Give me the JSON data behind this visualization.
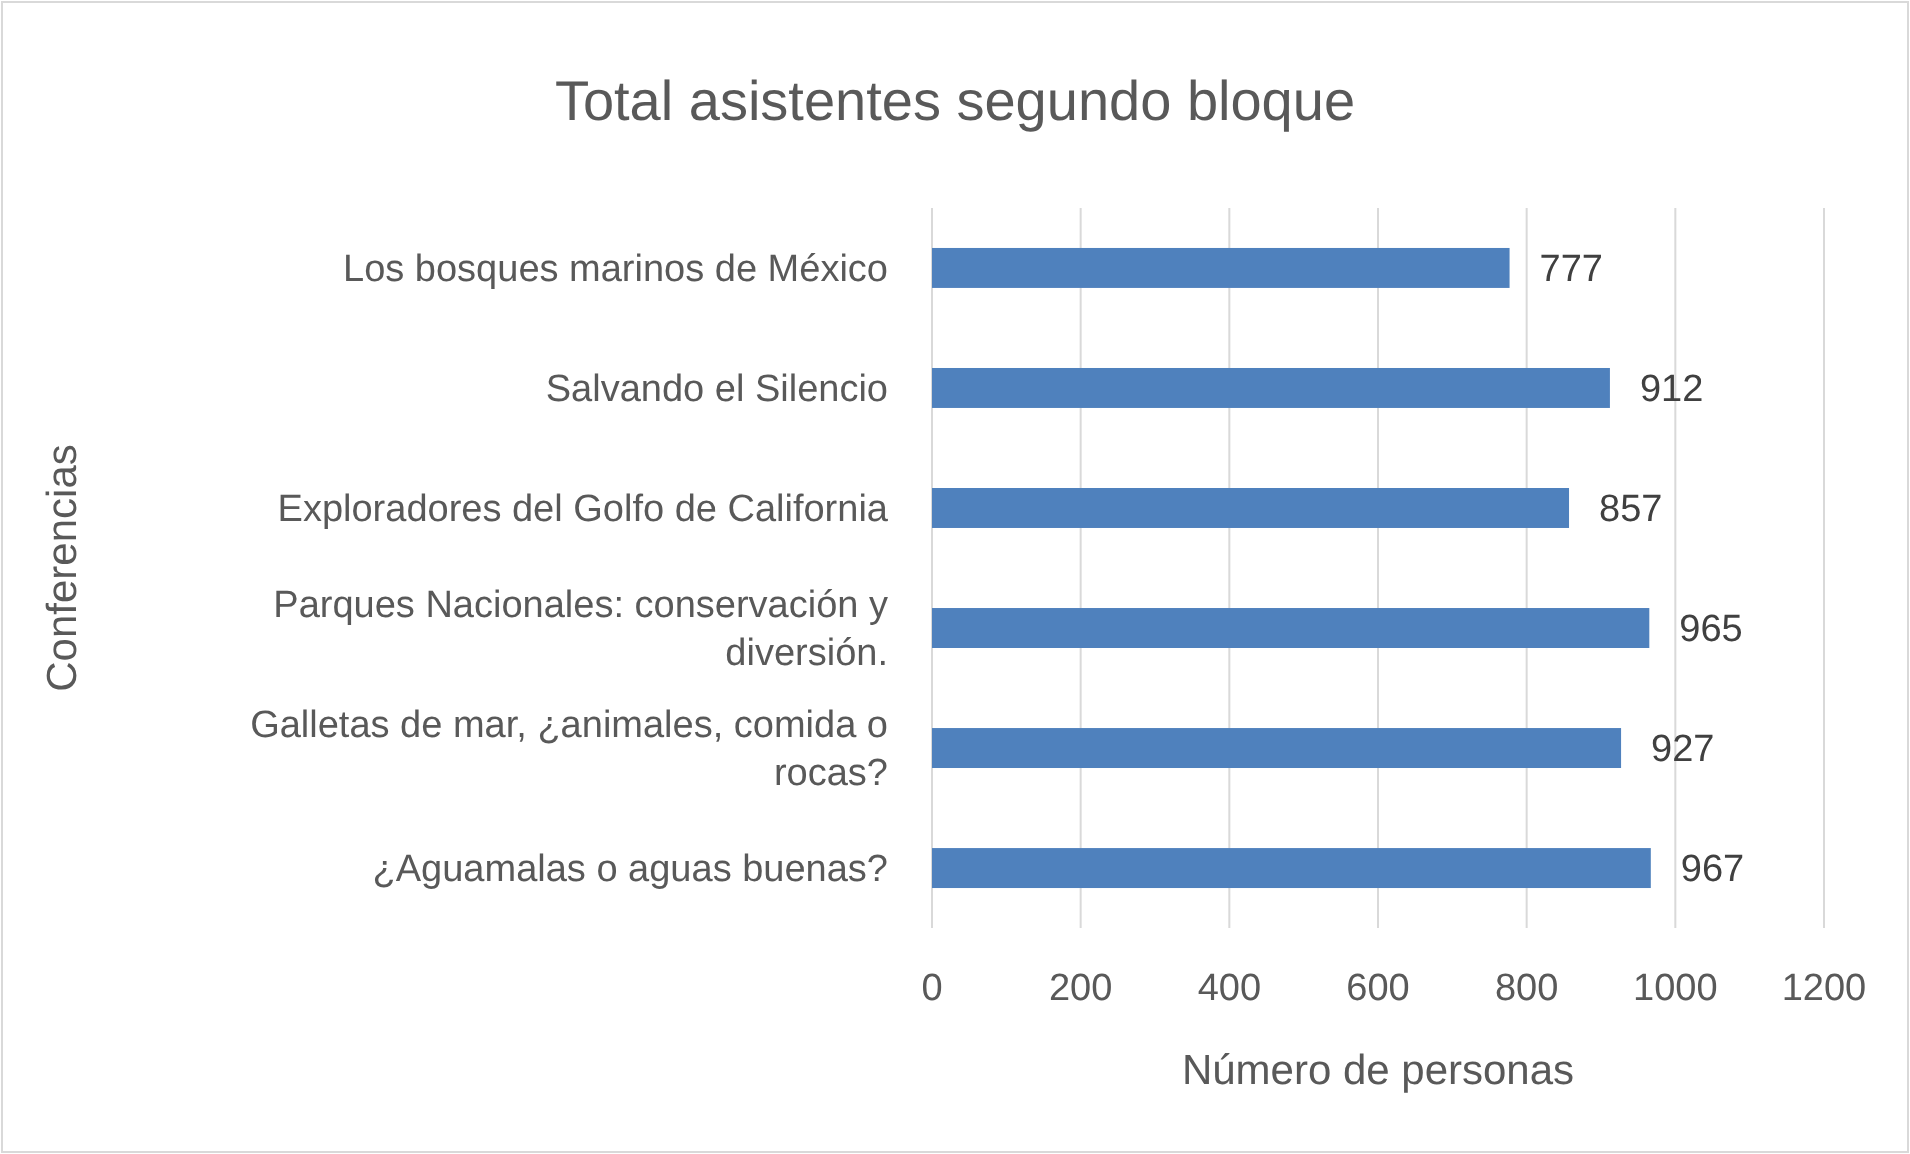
{
  "chart_data": {
    "type": "bar",
    "orientation": "horizontal",
    "title": "Total asistentes segundo bloque",
    "xlabel": "Número de personas",
    "ylabel": "Conferencias",
    "categories": [
      "Los bosques marinos de México",
      "Salvando el Silencio",
      "Exploradores del Golfo de California",
      "Parques Nacionales: conservación y diversión.",
      "Galletas de mar, ¿animales, comida o rocas?",
      "¿Aguamalas o aguas buenas?"
    ],
    "values": [
      777,
      912,
      857,
      965,
      927,
      967
    ],
    "color": "#4f81bd",
    "xlim": [
      0,
      1200
    ],
    "xticks": [
      0,
      200,
      400,
      600,
      800,
      1000,
      1200
    ],
    "grid": "x",
    "data_labels": true
  }
}
